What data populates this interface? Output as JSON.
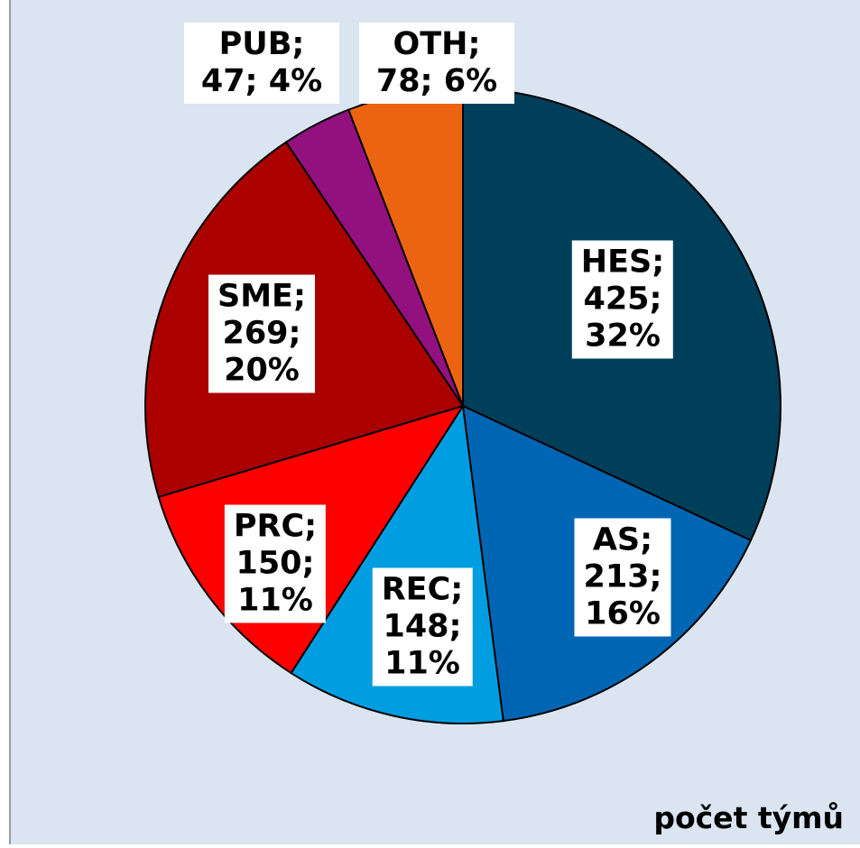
{
  "chart_data": {
    "type": "pie",
    "values": [
      425,
      213,
      148,
      150,
      269,
      47,
      78
    ],
    "value_labels": [
      "HES; 425; 32%",
      "AS; 213; 16%",
      "REC; 148; 11%",
      "PRC; 150; 11%",
      "SME; 269; 20%",
      "PUB; 47; 4%",
      "OTH; 78; 6%"
    ],
    "colors": [
      "#003f5a",
      "#0066b3",
      "#009ee0",
      "#ff0000",
      "#aa0000",
      "#92117e",
      "#ec6412"
    ],
    "annotation": "počet týmů"
  }
}
